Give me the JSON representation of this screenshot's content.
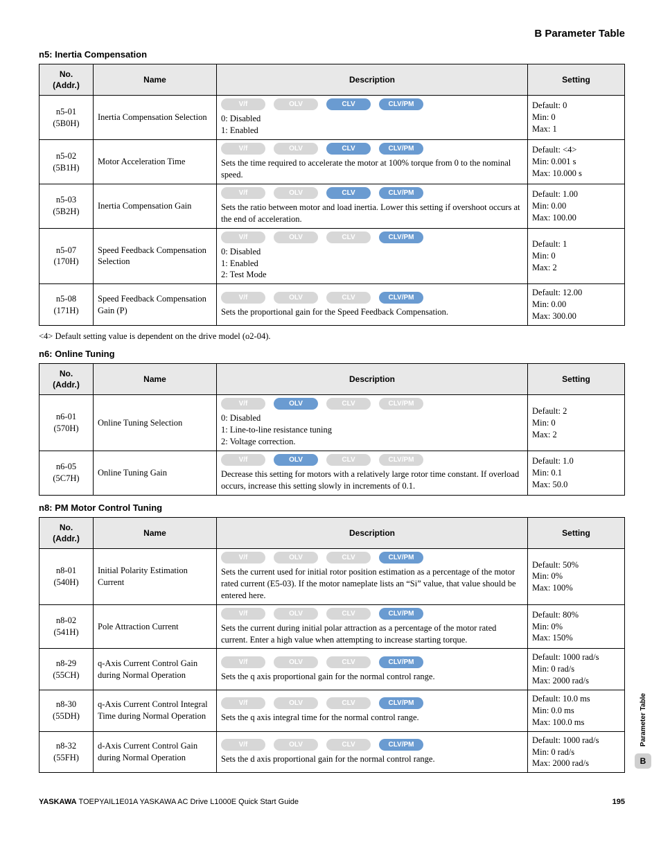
{
  "page": {
    "header": "B  Parameter Table",
    "footer_brand": "YASKAWA",
    "footer_text": " TOEPYAIL1E01A YASKAWA AC Drive L1000E Quick Start Guide",
    "page_number": "195",
    "side_label": "Parameter Table",
    "side_chip": "B"
  },
  "columns": {
    "no": "No.\n(Addr.)",
    "name": "Name",
    "desc": "Description",
    "setting": "Setting"
  },
  "badge_labels": [
    "V/f",
    "OLV",
    "CLV",
    "CLV/PM"
  ],
  "sections": [
    {
      "title": "n5: Inertia Compensation",
      "footnote": "<4> Default setting value is dependent on the drive model (o2-04).",
      "rows": [
        {
          "no": "n5-01\n(5B0H)",
          "name": "Inertia Compensation Selection",
          "badges": [
            false,
            false,
            true,
            true
          ],
          "desc": "0: Disabled\n1: Enabled",
          "setting": "Default: 0\nMin: 0\nMax: 1"
        },
        {
          "no": "n5-02\n(5B1H)",
          "name": "Motor Acceleration Time",
          "badges": [
            false,
            false,
            true,
            true
          ],
          "desc": "Sets the time required to accelerate the motor at 100% torque from 0 to the nominal speed.",
          "setting": "Default: <4>\nMin: 0.001 s\nMax: 10.000 s"
        },
        {
          "no": "n5-03\n(5B2H)",
          "name": "Inertia Compensation Gain",
          "badges": [
            false,
            false,
            true,
            true
          ],
          "desc": "Sets the ratio between motor and load inertia. Lower this setting if overshoot occurs at the end of acceleration.",
          "setting": "Default: 1.00\nMin: 0.00\nMax: 100.00"
        },
        {
          "no": "n5-07\n(170H)",
          "name": "Speed Feedback Compensation Selection",
          "badges": [
            false,
            false,
            false,
            true
          ],
          "desc": "0: Disabled\n1: Enabled\n2: Test Mode",
          "setting": "Default: 1\nMin: 0\nMax: 2"
        },
        {
          "no": "n5-08\n(171H)",
          "name": "Speed Feedback Compensation Gain (P)",
          "badges": [
            false,
            false,
            false,
            true
          ],
          "desc": "Sets the proportional gain for the Speed Feedback Compensation.",
          "setting": "Default: 12.00\nMin: 0.00\nMax: 300.00"
        }
      ]
    },
    {
      "title": "n6: Online Tuning",
      "rows": [
        {
          "no": "n6-01\n(570H)",
          "name": "Online Tuning Selection",
          "badges": [
            false,
            true,
            false,
            false
          ],
          "desc": "0: Disabled\n1: Line-to-line resistance tuning\n2: Voltage correction.",
          "setting": "Default: 2\nMin: 0\nMax: 2"
        },
        {
          "no": "n6-05\n(5C7H)",
          "name": "Online Tuning Gain",
          "badges": [
            false,
            true,
            false,
            false
          ],
          "desc": "Decrease this setting for motors with a relatively large rotor time constant. If overload occurs, increase this setting slowly in increments of 0.1.",
          "setting": "Default: 1.0\nMin: 0.1\nMax: 50.0"
        }
      ]
    },
    {
      "title": "n8: PM Motor Control Tuning",
      "rows": [
        {
          "no": "n8-01\n(540H)",
          "name": "Initial Polarity Estimation Current",
          "badges": [
            false,
            false,
            false,
            true
          ],
          "desc": "Sets the current used for initial rotor position estimation as a percentage of the motor rated current (E5-03). If the motor nameplate lists an “Si” value, that value should be entered here.",
          "setting": "Default: 50%\nMin: 0%\nMax: 100%"
        },
        {
          "no": "n8-02\n(541H)",
          "name": "Pole Attraction Current",
          "badges": [
            false,
            false,
            false,
            true
          ],
          "desc": "Sets the current during initial polar attraction as a percentage of the motor rated current. Enter a high value when attempting to increase starting torque.",
          "setting": "Default: 80%\nMin: 0%\nMax: 150%"
        },
        {
          "no": "n8-29\n(55CH)",
          "name": "q-Axis Current Control Gain during Normal Operation",
          "badges": [
            false,
            false,
            false,
            true
          ],
          "desc": "Sets the q axis proportional gain for the normal control range.",
          "setting": "Default: 1000 rad/s\nMin: 0 rad/s\nMax: 2000 rad/s"
        },
        {
          "no": "n8-30\n(55DH)",
          "name": "q-Axis Current Control Integral Time during Normal Operation",
          "badges": [
            false,
            false,
            false,
            true
          ],
          "desc": "Sets the q axis integral time for the normal control range.",
          "setting": "Default: 10.0 ms\nMin: 0.0 ms\nMax: 100.0 ms"
        },
        {
          "no": "n8-32\n(55FH)",
          "name": "d-Axis Current Control Gain during Normal Operation",
          "badges": [
            false,
            false,
            false,
            true
          ],
          "desc": "Sets the d axis proportional gain for the normal control range.",
          "setting": "Default: 1000 rad/s\nMin: 0 rad/s\nMax: 2000 rad/s"
        }
      ]
    }
  ]
}
